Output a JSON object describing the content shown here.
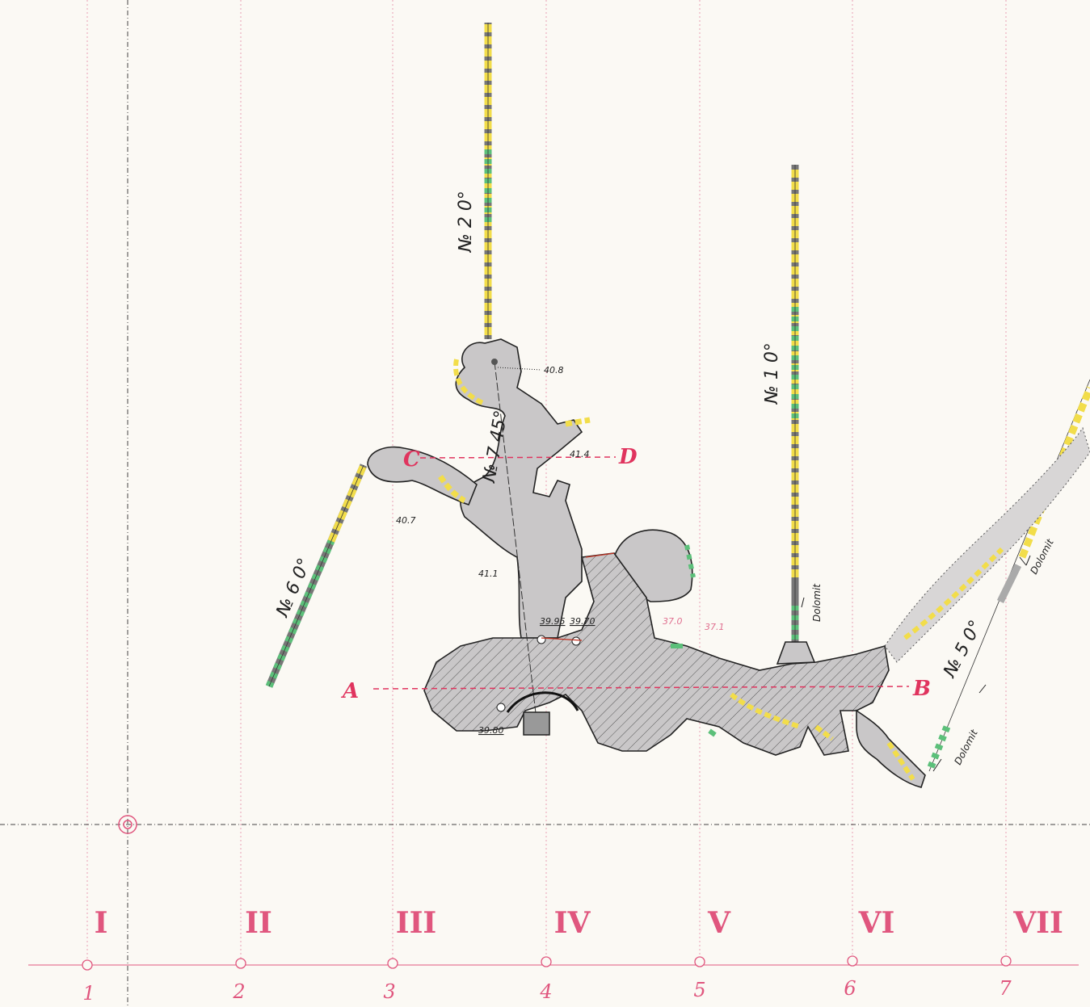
{
  "grid": {
    "roman_labels": [
      "I",
      "II",
      "III",
      "IV",
      "V",
      "VI",
      "VII"
    ],
    "arabic_labels": [
      "1",
      "2",
      "3",
      "4",
      "5",
      "6",
      "7"
    ]
  },
  "sections": {
    "a": "A",
    "b": "B",
    "c": "C",
    "d": "D"
  },
  "drill_holes": {
    "no2": "№ 2 0°",
    "no1": "№ 1 0°",
    "no7": "№ 7 45°",
    "no6": "№ 6 0°",
    "no5": "№ 5 0°"
  },
  "elevations": {
    "e408": "40.8",
    "e407": "40.7",
    "e411": "41.1",
    "e414": "41.4",
    "e3995": "39.95",
    "e3970": "39.70",
    "e3980": "39.80",
    "e370": "37.0",
    "e371": "37.1"
  },
  "rock_notes": {
    "dolomit1": "Dolomit",
    "dolomit2": "Dolomit",
    "dolomit3": "Dolomit"
  },
  "colors": {
    "grid_red": "#e0567e",
    "cave_fill": "#c9c7c8",
    "marker_yellow": "#f2dd4a",
    "marker_green": "#5cc07a"
  }
}
